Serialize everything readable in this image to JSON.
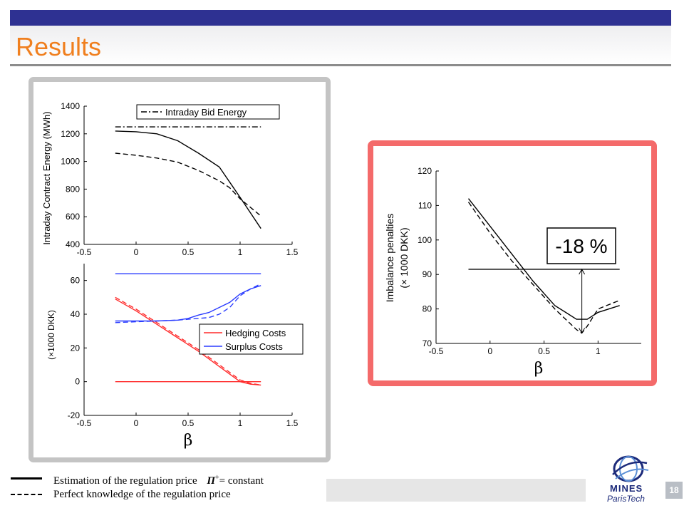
{
  "slide": {
    "title": "Results",
    "page_number": "18",
    "header_bar_color": "#2e3192",
    "title_color": "#f07f1e",
    "logo": {
      "name": "MINES ParisTech",
      "text_line1": "MINES",
      "text_line2": "ParisTech"
    }
  },
  "legend": {
    "solid_prefix": "Estimation of the regulation price",
    "solid_symbol": "Π",
    "solid_sup": "+",
    "solid_suffix": "= constant",
    "dashed": "Perfect knowledge of the regulation price"
  },
  "callout": {
    "text": "-18 %"
  },
  "chart_data": [
    {
      "type": "line",
      "ylabel": "Intraday Contract Energy (MWh)",
      "xlabel": "",
      "xlim": [
        -0.5,
        1.5
      ],
      "ylim": [
        400,
        1400
      ],
      "xticks": [
        "-0.5",
        "0",
        "0.5",
        "1",
        "1.5"
      ],
      "yticks": [
        "400",
        "600",
        "800",
        "1000",
        "1200",
        "1400"
      ],
      "legend": {
        "entries": [
          "Intraday Bid Energy"
        ],
        "position": "top"
      },
      "series": [
        {
          "name": "Intraday Bid Energy",
          "style": "dashdot",
          "color": "#000000",
          "x": [
            -0.2,
            1.2
          ],
          "y": [
            1250,
            1250
          ]
        },
        {
          "style": "solid",
          "color": "#000000",
          "x": [
            -0.2,
            0,
            0.2,
            0.4,
            0.6,
            0.8,
            0.9,
            1.0,
            1.2
          ],
          "y": [
            1220,
            1215,
            1200,
            1150,
            1060,
            960,
            850,
            740,
            515
          ]
        },
        {
          "style": "dashed",
          "color": "#000000",
          "x": [
            -0.2,
            0,
            0.2,
            0.4,
            0.6,
            0.8,
            0.9,
            1.0,
            1.2
          ],
          "y": [
            1060,
            1045,
            1025,
            995,
            935,
            860,
            810,
            730,
            605
          ]
        }
      ]
    },
    {
      "type": "line",
      "ylabel": "(×1000 DKK)",
      "xlabel": "β",
      "xlim": [
        -0.5,
        1.5
      ],
      "ylim": [
        -20,
        70
      ],
      "xticks": [
        "-0.5",
        "0",
        "0.5",
        "1",
        "1.5"
      ],
      "yticks": [
        "-20",
        "0",
        "20",
        "40",
        "60"
      ],
      "legend": {
        "entries": [
          "Hedging Costs",
          "Surplus Costs"
        ],
        "position": "right"
      },
      "series": [
        {
          "style": "solid",
          "color": "#ff2a2a",
          "x": [
            -0.2,
            1.2
          ],
          "y": [
            0,
            0
          ]
        },
        {
          "style": "solid",
          "color": "#2a3cff",
          "x": [
            -0.2,
            1.2
          ],
          "y": [
            64,
            64
          ]
        },
        {
          "name": "Hedging Costs",
          "style": "solid",
          "color": "#ff2a2a",
          "x": [
            -0.2,
            0,
            0.2,
            0.4,
            0.6,
            0.8,
            1.0,
            1.1,
            1.2
          ],
          "y": [
            49,
            42,
            34,
            26,
            18,
            9,
            0,
            -1.5,
            -2
          ]
        },
        {
          "style": "dashed",
          "color": "#ff2a2a",
          "x": [
            -0.2,
            0,
            0.2,
            0.4,
            0.6,
            0.8,
            1.0,
            1.1,
            1.2
          ],
          "y": [
            50,
            43,
            35,
            27,
            19,
            10,
            1,
            -1,
            -2
          ]
        },
        {
          "name": "Surplus Costs",
          "style": "solid",
          "color": "#2a3cff",
          "x": [
            -0.2,
            0,
            0.2,
            0.4,
            0.5,
            0.6,
            0.7,
            0.8,
            0.9,
            1.0,
            1.1,
            1.2
          ],
          "y": [
            36,
            36,
            36,
            36.5,
            37.5,
            39.5,
            41,
            44,
            47,
            52,
            55,
            57
          ]
        },
        {
          "style": "dashed",
          "color": "#2a3cff",
          "x": [
            -0.2,
            0,
            0.2,
            0.4,
            0.5,
            0.6,
            0.7,
            0.8,
            0.9,
            1.0,
            1.1,
            1.2
          ],
          "y": [
            35,
            35.5,
            36,
            36.5,
            37,
            37.5,
            38,
            40,
            44,
            51,
            55,
            58
          ]
        }
      ]
    },
    {
      "type": "line",
      "ylabel": "Imbalance penalties",
      "ylabel2": "(× 1000 DKK)",
      "xlabel": "β",
      "xlim": [
        -0.5,
        1.4
      ],
      "ylim": [
        70,
        120
      ],
      "xticks": [
        "-0.5",
        "0",
        "0.5",
        "1"
      ],
      "yticks": [
        "70",
        "80",
        "90",
        "100",
        "110",
        "120"
      ],
      "series": [
        {
          "style": "solid",
          "color": "#000000",
          "x": [
            -0.2,
            0,
            0.2,
            0.4,
            0.6,
            0.7,
            0.8,
            0.9,
            1.0,
            1.2
          ],
          "y": [
            112,
            104,
            96,
            88,
            81,
            79,
            77,
            77,
            79,
            81
          ]
        },
        {
          "style": "dashed",
          "color": "#000000",
          "x": [
            -0.2,
            0,
            0.2,
            0.4,
            0.6,
            0.7,
            0.8,
            0.85,
            0.9,
            1.0,
            1.2
          ],
          "y": [
            111,
            102,
            94,
            87,
            80,
            77,
            74,
            73,
            75,
            80,
            82.5
          ]
        },
        {
          "style": "solid",
          "color": "#000000",
          "x": [
            -0.2,
            1.2
          ],
          "y": [
            91.5,
            91.5
          ]
        }
      ],
      "annotation": {
        "arrow_x": 0.85,
        "arrow_y_from": 73,
        "arrow_y_to": 91.5
      }
    }
  ]
}
